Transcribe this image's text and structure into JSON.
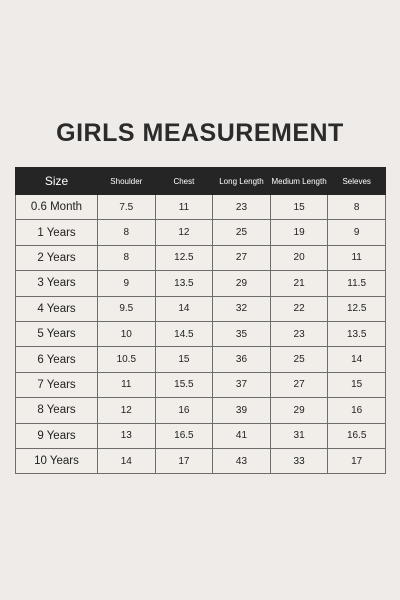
{
  "title": "GIRLS MEASUREMENT",
  "table": {
    "headers": [
      "Size",
      "Shoulder",
      "Chest",
      "Long Length",
      "Medium Length",
      "Seleves"
    ],
    "rows": [
      [
        "0.6 Month",
        "7.5",
        "11",
        "23",
        "15",
        "8"
      ],
      [
        "1 Years",
        "8",
        "12",
        "25",
        "19",
        "9"
      ],
      [
        "2 Years",
        "8",
        "12.5",
        "27",
        "20",
        "11"
      ],
      [
        "3 Years",
        "9",
        "13.5",
        "29",
        "21",
        "11.5"
      ],
      [
        "4 Years",
        "9.5",
        "14",
        "32",
        "22",
        "12.5"
      ],
      [
        "5 Years",
        "10",
        "14.5",
        "35",
        "23",
        "13.5"
      ],
      [
        "6 Years",
        "10.5",
        "15",
        "36",
        "25",
        "14"
      ],
      [
        "7 Years",
        "11",
        "15.5",
        "37",
        "27",
        "15"
      ],
      [
        "8 Years",
        "12",
        "16",
        "39",
        "29",
        "16"
      ],
      [
        "9 Years",
        "13",
        "16.5",
        "41",
        "31",
        "16.5"
      ],
      [
        "10 Years",
        "14",
        "17",
        "43",
        "33",
        "17"
      ]
    ]
  }
}
